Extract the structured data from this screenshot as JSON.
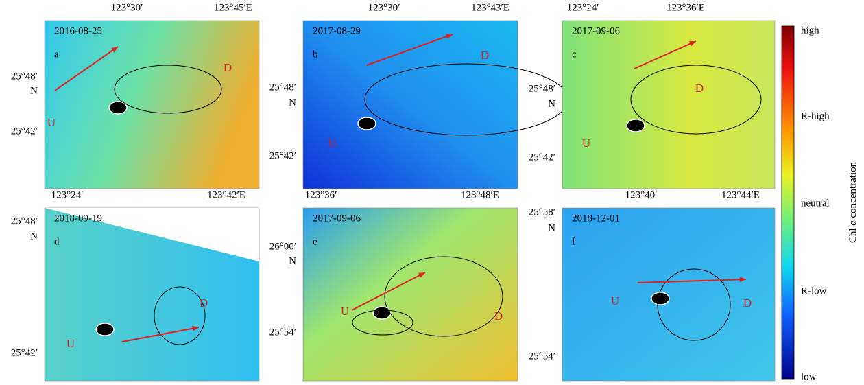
{
  "panels": [
    {
      "date": "2016-08-25",
      "letter": "a",
      "top_labels": [
        "123°30′",
        "123°45′E"
      ],
      "left_labels": [
        "25°48′",
        "N",
        "25°42′"
      ],
      "markers": [
        "D",
        "U"
      ]
    },
    {
      "date": "2017-08-29",
      "letter": "b",
      "top_labels": [
        "123°30′",
        "123°43′E"
      ],
      "left_labels": [
        "25°48′",
        "N",
        "25°42′"
      ],
      "markers": [
        "D",
        "U"
      ]
    },
    {
      "date": "2017-09-06",
      "letter": "c",
      "top_labels": [
        "123°24′",
        "123°36′E"
      ],
      "left_labels": [
        "25°48′",
        "N",
        "25°42′"
      ],
      "markers": [
        "D",
        "U"
      ]
    },
    {
      "date": "2018-09-19",
      "letter": "d",
      "top_labels": [
        "123°24′",
        "123°42′E"
      ],
      "left_labels": [
        "25°48′",
        "N",
        "25°42′"
      ],
      "markers": [
        "D",
        "U"
      ]
    },
    {
      "date": "2017-09-06",
      "letter": "e",
      "top_labels": [
        "123°36′",
        "123°48′E"
      ],
      "left_labels": [
        "26°00′",
        "N",
        "25°54′"
      ],
      "markers": [
        "U",
        "D"
      ]
    },
    {
      "date": "2018-12-01",
      "letter": "f",
      "top_labels": [
        "123°40′",
        "123°44′E"
      ],
      "left_labels": [
        "25°58′",
        "N",
        "25°54′"
      ],
      "markers": [
        "U",
        "D"
      ]
    }
  ],
  "colorbar": {
    "labels": [
      "high",
      "R-high",
      "neutral",
      "R-low",
      "low"
    ],
    "title": [
      "Chl",
      "a",
      "concentration"
    ]
  }
}
